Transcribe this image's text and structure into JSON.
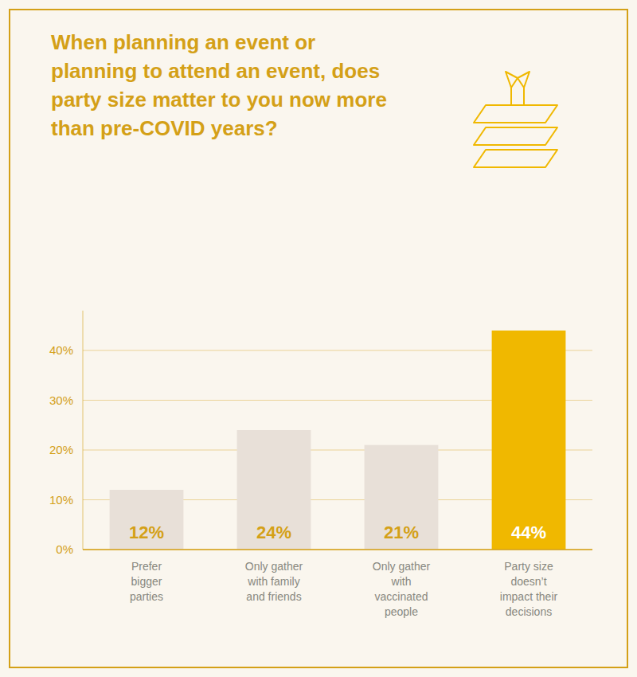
{
  "chart_data": {
    "type": "bar",
    "title": "When planning an event or\nplanning to attend an event, does\nparty size matter to you now more\nthan pre-COVID years?",
    "categories": [
      "Prefer\nbigger\nparties",
      "Only gather\nwith family\nand friends",
      "Only gather\nwith\nvaccinated\npeople",
      "Party size\ndoesn’t\nimpact their\ndecisions"
    ],
    "values": [
      12,
      24,
      21,
      44
    ],
    "value_labels": [
      "12%",
      "24%",
      "21%",
      "44%"
    ],
    "data_labels": true,
    "colors": [
      "#e8e0d8",
      "#e8e0d8",
      "#e8e0d8",
      "#f0b800"
    ],
    "color": "#d4a017",
    "ylim": [
      0,
      48
    ],
    "yticks": [
      {
        "value": 0,
        "label": "0%"
      },
      {
        "value": 10,
        "label": "10%"
      },
      {
        "value": 20,
        "label": "20%"
      },
      {
        "value": 30,
        "label": "30%"
      },
      {
        "value": 40,
        "label": "40%"
      }
    ],
    "grid": true
  }
}
